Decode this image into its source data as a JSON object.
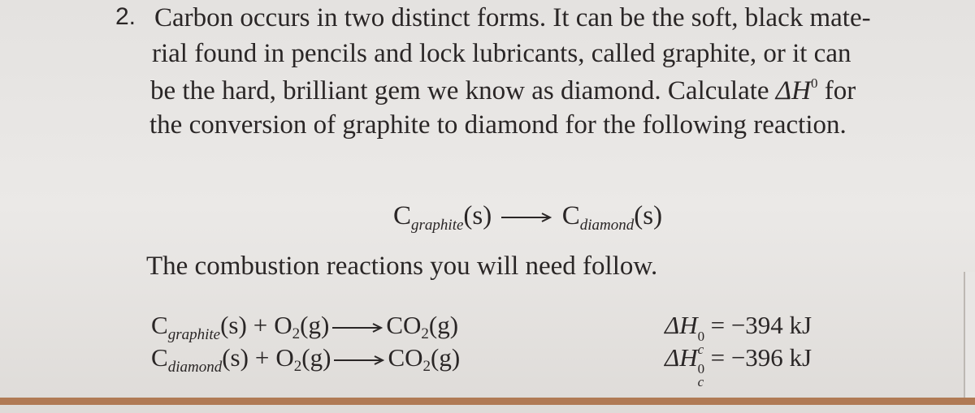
{
  "problem": {
    "number": "2.",
    "lines": [
      "Carbon occurs in two distinct forms. It can be the soft, black mate-",
      "rial found in pencils and lock lubricants, called graphite, or it can",
      {
        "before": "be the hard, brilliant gem we know as diamond. Calculate ",
        "symbol": "ΔH",
        "superscript": "0",
        "after": " for"
      },
      "the conversion of graphite to diamond for the following reaction."
    ]
  },
  "main_reaction": {
    "reactant": {
      "symbol": "C",
      "subscript": "graphite",
      "state": "(s)"
    },
    "product": {
      "symbol": "C",
      "subscript": "diamond",
      "state": "(s)"
    }
  },
  "instruction": "The combustion reactions you will need follow.",
  "combustion_reactions": [
    {
      "reactant_1": {
        "symbol": "C",
        "subscript": "graphite",
        "state": "(s)"
      },
      "plus": "+",
      "reactant_2": {
        "symbol": "O",
        "subscript": "2",
        "state": "(g)"
      },
      "product": {
        "symbol": "CO",
        "subscript": "2",
        "state": "(g)"
      },
      "enthalpy": {
        "symbol": "ΔH",
        "superscript": "0",
        "subscript": "c",
        "value": "= −394 kJ"
      }
    },
    {
      "reactant_1": {
        "symbol": "C",
        "subscript": "diamond",
        "state": "(s)"
      },
      "plus": "+",
      "reactant_2": {
        "symbol": "O",
        "subscript": "2",
        "state": "(g)"
      },
      "product": {
        "symbol": "CO",
        "subscript": "2",
        "state": "(g)"
      },
      "enthalpy": {
        "symbol": "ΔH",
        "superscript": "0",
        "subscript": "c",
        "value": "= −396 kJ"
      }
    }
  ]
}
